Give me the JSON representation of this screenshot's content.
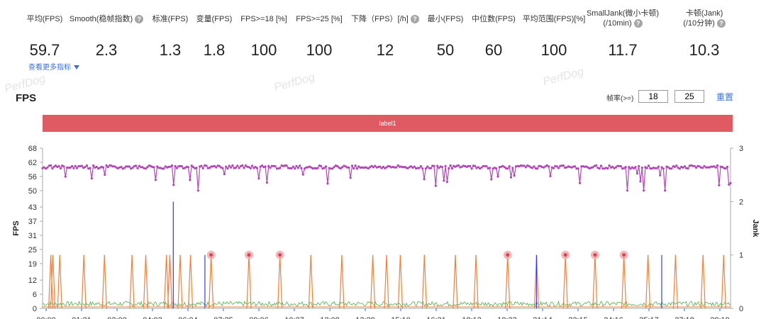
{
  "metrics": [
    {
      "label": "平均(FPS)",
      "value": "59.7",
      "help": false
    },
    {
      "label": "Smooth(稳帧指数)",
      "value": "2.3",
      "help": true
    },
    {
      "label": "标准(FPS)",
      "value": "1.3",
      "help": false
    },
    {
      "label": "变量(FPS)",
      "value": "1.8",
      "help": false
    },
    {
      "label": "FPS>=18 [%]",
      "value": "100",
      "help": false
    },
    {
      "label": "FPS>=25 [%]",
      "value": "100",
      "help": false
    },
    {
      "label": "下降（FPS）[/h]",
      "value": "12",
      "help": true
    },
    {
      "label": "最小(FPS)",
      "value": "50",
      "help": false
    },
    {
      "label": "中位数(FPS)",
      "value": "60",
      "help": false
    },
    {
      "label": "平均范围(FPS)[%]",
      "value": "100",
      "help": false
    },
    {
      "label": "SmallJank(微小卡顿)",
      "label2": "(/10min)",
      "value": "11.7",
      "help": true
    },
    {
      "label": "卡顿(Jank)",
      "label2": "(/10分钟)",
      "value": "10.3",
      "help": true
    }
  ],
  "more_link": "查看更多指标",
  "watermark": "PerfDog",
  "section_title": "FPS",
  "frame_rate": {
    "label": "帧率(>=)",
    "input1": "18",
    "input2": "25",
    "reset": "重置"
  },
  "label_bar": "label1",
  "chart_data": {
    "type": "line",
    "ylabel": "FPS",
    "y2label": "Jank",
    "y_ticks": [
      0,
      6,
      12,
      19,
      25,
      31,
      37,
      43,
      50,
      56,
      62,
      68
    ],
    "y2_ticks": [
      0,
      1,
      2,
      3
    ],
    "ylim": [
      0,
      68
    ],
    "y2lim": [
      0,
      3
    ],
    "x_tick_labels": [
      "00:00",
      "01:21",
      "02:00",
      "04:02",
      "06:04",
      "07:25",
      "09:06",
      "10:27",
      "12:08",
      "13:29",
      "15:10",
      "16:31",
      "18:12",
      "19:33",
      "21:14",
      "22:15",
      "24:16",
      "25:17",
      "27:18",
      "28:19"
    ],
    "fps_series": {
      "baseline": 60,
      "min": 50,
      "color": "#b048b5"
    },
    "small_jank_series": {
      "color": "#f07f3c"
    },
    "jank_series": {
      "color": "#3a3ad8"
    },
    "green_series": {
      "color": "#4caf50"
    },
    "jank_markers_at": [
      0.245,
      0.3,
      0.345,
      0.676,
      0.76,
      0.803,
      0.845
    ],
    "small_jank_spikes_at": [
      0.012,
      0.015,
      0.025,
      0.06,
      0.09,
      0.13,
      0.15,
      0.18,
      0.185,
      0.2,
      0.215,
      0.245,
      0.3,
      0.345,
      0.39,
      0.435,
      0.48,
      0.5,
      0.52,
      0.555,
      0.6,
      0.63,
      0.676,
      0.718,
      0.76,
      0.803,
      0.845,
      0.88,
      0.92,
      0.96,
      0.99
    ],
    "blue_spikes": [
      {
        "at": 0.19,
        "value": 2.0
      },
      {
        "at": 0.236,
        "value": 1.0
      },
      {
        "at": 0.718,
        "value": 1.0
      },
      {
        "at": 0.9,
        "value": 1.0
      }
    ]
  }
}
